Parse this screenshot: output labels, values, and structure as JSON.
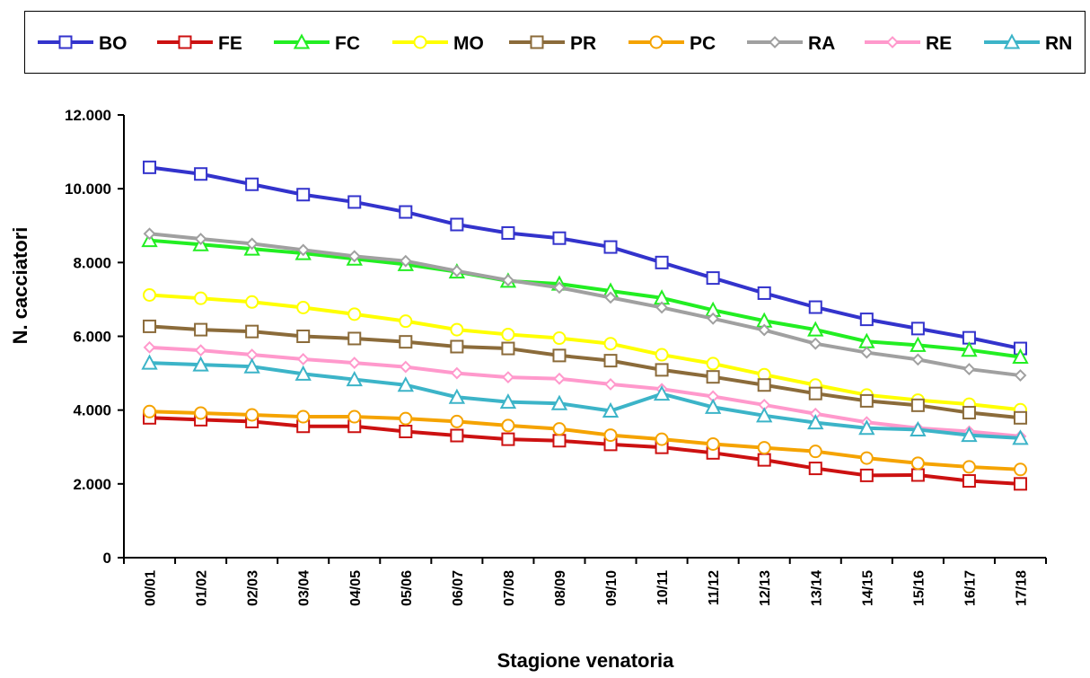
{
  "chart_data": {
    "type": "line",
    "xlabel": "Stagione venatoria",
    "ylabel": "N. cacciatori",
    "ylim": [
      0,
      12000
    ],
    "yticks": [
      0,
      2000,
      4000,
      6000,
      8000,
      10000,
      12000
    ],
    "ytick_labels": [
      "0",
      "2.000",
      "4.000",
      "6.000",
      "8.000",
      "10.000",
      "12.000"
    ],
    "legend_position": "top",
    "grid": false,
    "categories": [
      "00/01",
      "01/02",
      "02/03",
      "03/04",
      "04/05",
      "05/06",
      "06/07",
      "07/08",
      "08/09",
      "09/10",
      "10/11",
      "11/12",
      "12/13",
      "13/14",
      "14/15",
      "15/16",
      "16/17",
      "17/18"
    ],
    "series": [
      {
        "name": "BO",
        "color": "#3333cc",
        "marker": "square",
        "values": [
          10580,
          10400,
          10120,
          9840,
          9640,
          9370,
          9030,
          8800,
          8660,
          8420,
          8000,
          7580,
          7170,
          6790,
          6460,
          6210,
          5960,
          5670
        ]
      },
      {
        "name": "FE",
        "color": "#cc1111",
        "marker": "square",
        "values": [
          3790,
          3740,
          3690,
          3560,
          3560,
          3420,
          3310,
          3210,
          3170,
          3070,
          2990,
          2840,
          2650,
          2420,
          2230,
          2240,
          2080,
          2000
        ]
      },
      {
        "name": "FC",
        "color": "#22ee22",
        "marker": "triangle",
        "values": [
          8600,
          8490,
          8370,
          8250,
          8100,
          7950,
          7750,
          7500,
          7420,
          7230,
          7040,
          6710,
          6420,
          6180,
          5860,
          5760,
          5630,
          5440
        ]
      },
      {
        "name": "MO",
        "color": "#ffff00",
        "marker": "circle",
        "values": [
          7120,
          7030,
          6930,
          6780,
          6600,
          6410,
          6180,
          6050,
          5950,
          5800,
          5500,
          5260,
          4960,
          4680,
          4410,
          4270,
          4160,
          4010
        ]
      },
      {
        "name": "PR",
        "color": "#8b6b3a",
        "marker": "square",
        "values": [
          6270,
          6180,
          6130,
          6000,
          5940,
          5850,
          5720,
          5670,
          5480,
          5340,
          5090,
          4900,
          4680,
          4450,
          4250,
          4130,
          3930,
          3790
        ]
      },
      {
        "name": "PC",
        "color": "#f5a300",
        "marker": "circle",
        "values": [
          3960,
          3920,
          3870,
          3820,
          3820,
          3770,
          3690,
          3580,
          3490,
          3320,
          3210,
          3080,
          2980,
          2880,
          2700,
          2560,
          2460,
          2390
        ]
      },
      {
        "name": "RA",
        "color": "#a0a0a0",
        "marker": "diamond",
        "values": [
          8780,
          8640,
          8510,
          8340,
          8170,
          8040,
          7770,
          7520,
          7320,
          7050,
          6780,
          6480,
          6170,
          5800,
          5560,
          5370,
          5110,
          4940
        ]
      },
      {
        "name": "RE",
        "color": "#ff99cc",
        "marker": "diamond",
        "values": [
          5700,
          5620,
          5500,
          5380,
          5280,
          5170,
          5000,
          4890,
          4850,
          4700,
          4570,
          4370,
          4140,
          3900,
          3670,
          3510,
          3420,
          3290
        ]
      },
      {
        "name": "RN",
        "color": "#3cb4c8",
        "marker": "triangle",
        "values": [
          5280,
          5230,
          5180,
          4980,
          4830,
          4680,
          4350,
          4220,
          4180,
          3980,
          4440,
          4080,
          3850,
          3660,
          3510,
          3470,
          3320,
          3240
        ]
      }
    ]
  }
}
